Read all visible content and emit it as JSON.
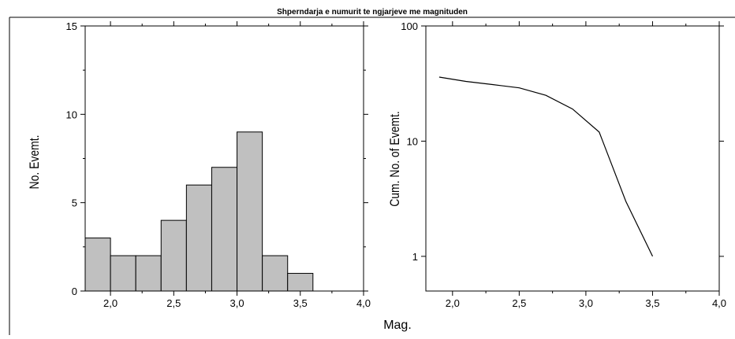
{
  "figure": {
    "title": "Shperndarja e numurit te ngjarjeve me magnituden",
    "shared_xlabel": "Mag."
  },
  "chart_data": [
    {
      "type": "bar",
      "subtype": "histogram",
      "ylabel": "No. Evemt.",
      "xlim": [
        1.8,
        4.0
      ],
      "ylim": [
        0,
        15
      ],
      "x_ticks": [
        "2,0",
        "2,5",
        "3,0",
        "3,5",
        "4,0"
      ],
      "y_ticks": [
        "0",
        "5",
        "10",
        "15"
      ],
      "bin_width": 0.2,
      "bins": [
        {
          "start": 1.8,
          "end": 2.0,
          "count": 3
        },
        {
          "start": 2.0,
          "end": 2.2,
          "count": 2
        },
        {
          "start": 2.2,
          "end": 2.4,
          "count": 2
        },
        {
          "start": 2.4,
          "end": 2.6,
          "count": 4
        },
        {
          "start": 2.6,
          "end": 2.8,
          "count": 6
        },
        {
          "start": 2.8,
          "end": 3.0,
          "count": 7
        },
        {
          "start": 3.0,
          "end": 3.2,
          "count": 9
        },
        {
          "start": 3.2,
          "end": 3.4,
          "count": 2
        },
        {
          "start": 3.4,
          "end": 3.6,
          "count": 1
        }
      ],
      "bar_color": "#c0c0c0",
      "grid": false
    },
    {
      "type": "line",
      "yscale": "log",
      "ylabel": "Cum. No. of Evemt.",
      "xlim": [
        1.8,
        4.0
      ],
      "ylim": [
        0.5,
        100
      ],
      "x_ticks": [
        "2,0",
        "2,5",
        "3,0",
        "3,5",
        "4,0"
      ],
      "y_ticks": [
        "1",
        "10",
        "100"
      ],
      "x": [
        1.9,
        2.1,
        2.3,
        2.5,
        2.7,
        2.9,
        3.1,
        3.3,
        3.5
      ],
      "y": [
        36,
        33,
        31,
        29,
        25,
        19,
        12,
        3,
        1
      ],
      "line_color": "#000000",
      "grid": false
    }
  ]
}
